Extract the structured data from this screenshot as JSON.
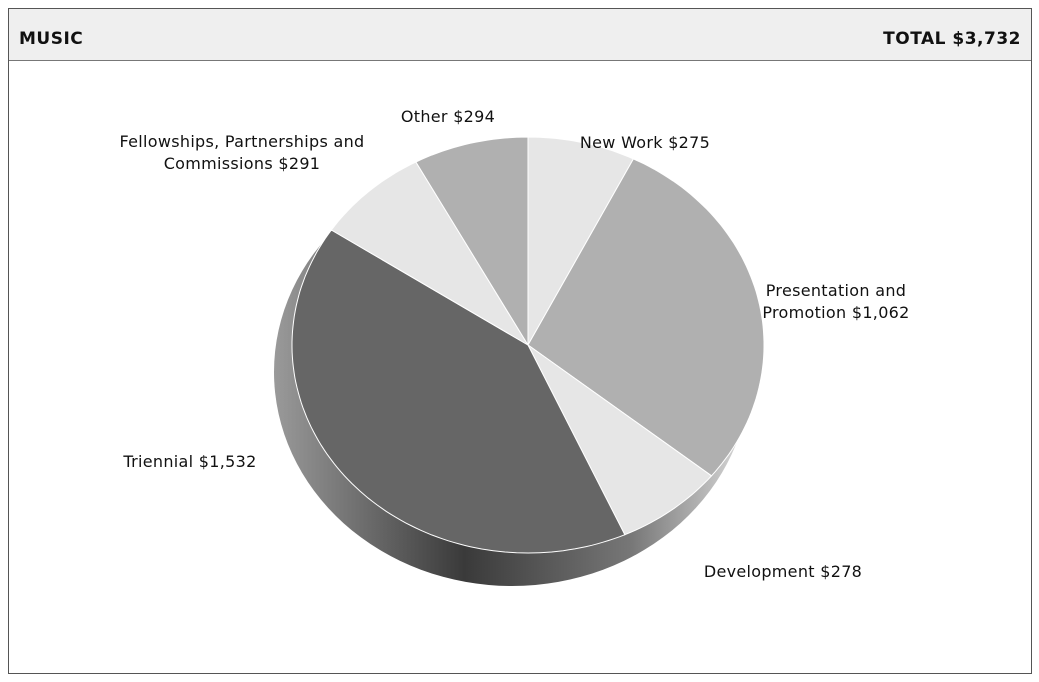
{
  "chart_data": {
    "type": "pie",
    "title": "MUSIC",
    "total": "TOTAL $3,732",
    "categories": [
      "New Work",
      "Presentation and Promotion",
      "Development",
      "Triennial",
      "Fellowships, Partnerships and Commissions",
      "Other"
    ],
    "values": [
      275,
      1062,
      278,
      1532,
      291,
      294
    ],
    "value_labels": [
      "$275",
      "$1,062",
      "$278",
      "$1,532",
      "$291",
      "$294"
    ],
    "colors": [
      "#e6e6e6",
      "#b0b0b0",
      "#e6e6e6",
      "#666666",
      "#e6e6e6",
      "#b0b0b0"
    ]
  }
}
